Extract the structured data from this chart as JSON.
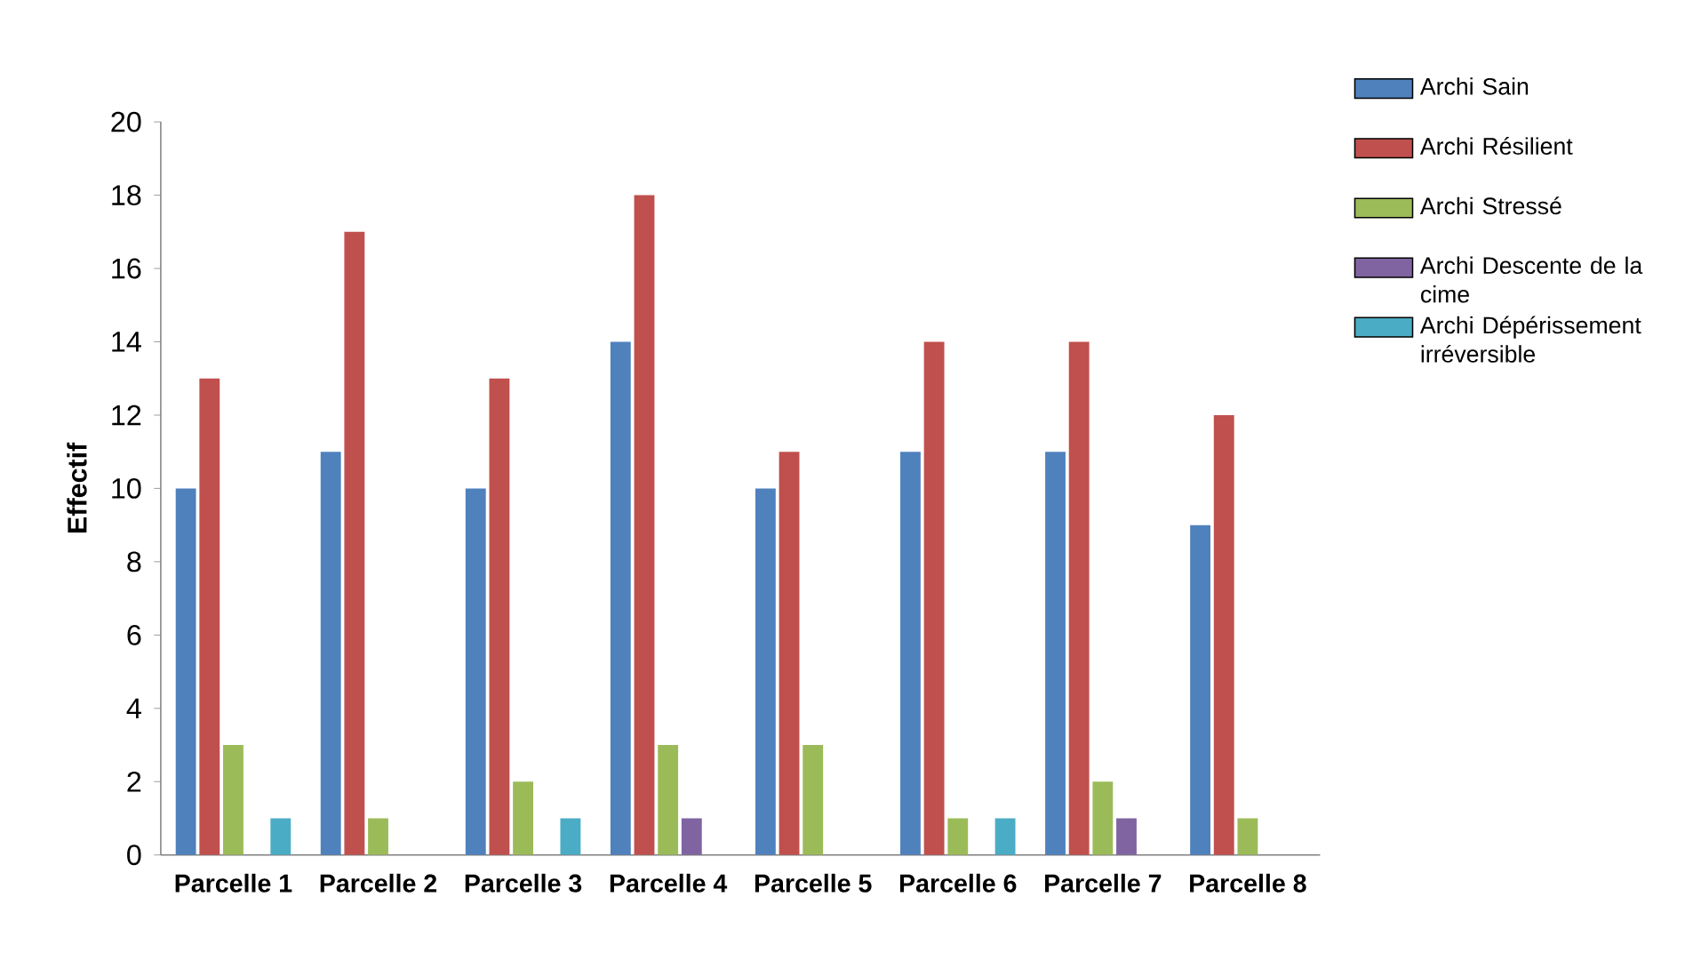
{
  "chart_data": {
    "type": "bar",
    "ylabel": "Effectif",
    "categories": [
      "Parcelle 1",
      "Parcelle 2",
      "Parcelle 3",
      "Parcelle 4",
      "Parcelle 5",
      "Parcelle 6",
      "Parcelle 7",
      "Parcelle 8"
    ],
    "series": [
      {
        "name": "Archi Sain",
        "color": "#4f81bd",
        "values": [
          10,
          11,
          10,
          14,
          10,
          11,
          11,
          9
        ]
      },
      {
        "name": "Archi Résilient",
        "color": "#c0504d",
        "values": [
          13,
          17,
          13,
          18,
          11,
          14,
          14,
          12
        ]
      },
      {
        "name": "Archi Stressé",
        "color": "#9bbb59",
        "values": [
          3,
          1,
          2,
          3,
          3,
          1,
          2,
          1
        ]
      },
      {
        "name": "Archi Descente de la cime",
        "color": "#8064a2",
        "values": [
          0,
          0,
          0,
          1,
          0,
          0,
          1,
          0
        ]
      },
      {
        "name": "Archi Dépérissement irréversible",
        "color": "#4bacc6",
        "values": [
          1,
          0,
          1,
          0,
          0,
          1,
          0,
          0
        ]
      }
    ],
    "ylim": [
      0,
      20
    ],
    "yticks": [
      0,
      2,
      4,
      6,
      8,
      10,
      12,
      14,
      16,
      18,
      20
    ],
    "legend": "right"
  }
}
